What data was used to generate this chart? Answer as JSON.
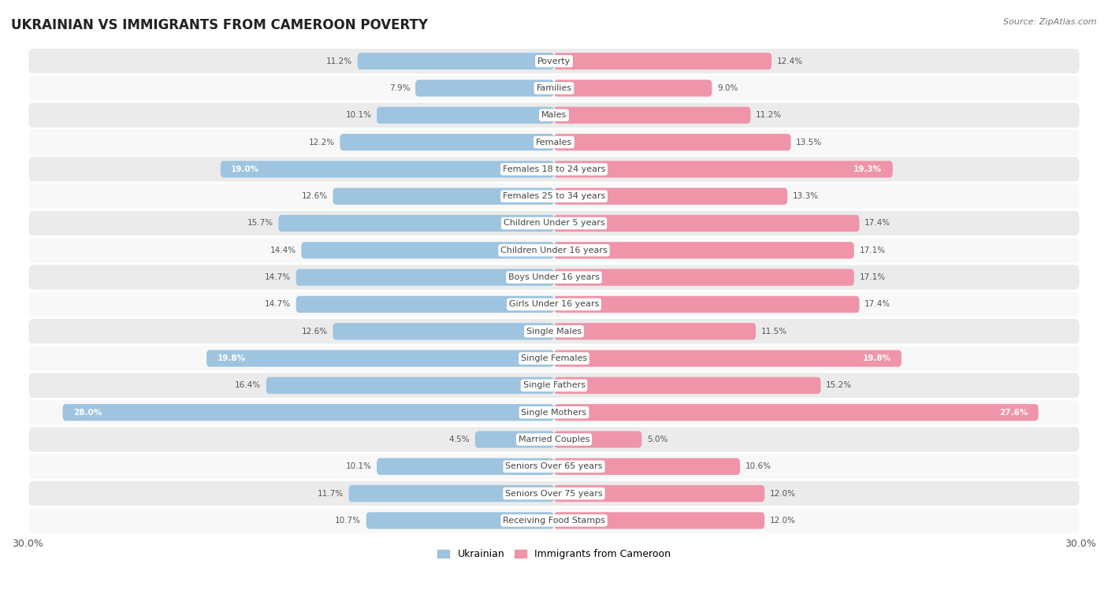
{
  "title": "UKRAINIAN VS IMMIGRANTS FROM CAMEROON POVERTY",
  "source": "Source: ZipAtlas.com",
  "categories": [
    "Poverty",
    "Families",
    "Males",
    "Females",
    "Females 18 to 24 years",
    "Females 25 to 34 years",
    "Children Under 5 years",
    "Children Under 16 years",
    "Boys Under 16 years",
    "Girls Under 16 years",
    "Single Males",
    "Single Females",
    "Single Fathers",
    "Single Mothers",
    "Married Couples",
    "Seniors Over 65 years",
    "Seniors Over 75 years",
    "Receiving Food Stamps"
  ],
  "ukrainian": [
    11.2,
    7.9,
    10.1,
    12.2,
    19.0,
    12.6,
    15.7,
    14.4,
    14.7,
    14.7,
    12.6,
    19.8,
    16.4,
    28.0,
    4.5,
    10.1,
    11.7,
    10.7
  ],
  "cameroon": [
    12.4,
    9.0,
    11.2,
    13.5,
    19.3,
    13.3,
    17.4,
    17.1,
    17.1,
    17.4,
    11.5,
    19.8,
    15.2,
    27.6,
    5.0,
    10.6,
    12.0,
    12.0
  ],
  "ukrainian_color": "#9ec4e0",
  "cameroon_color": "#f094aa",
  "highlight_ukrainian": [
    4,
    11,
    13
  ],
  "highlight_cameroon": [
    4,
    11,
    13
  ],
  "bar_height": 0.62,
  "max_val": 30.0,
  "legend_ukrainian": "Ukrainian",
  "legend_cameroon": "Immigrants from Cameroon",
  "bg_color_light": "#ebebeb",
  "bg_color_white": "#f8f8f8",
  "title_fontsize": 12,
  "label_fontsize": 8,
  "value_fontsize": 7.5,
  "source_fontsize": 8
}
